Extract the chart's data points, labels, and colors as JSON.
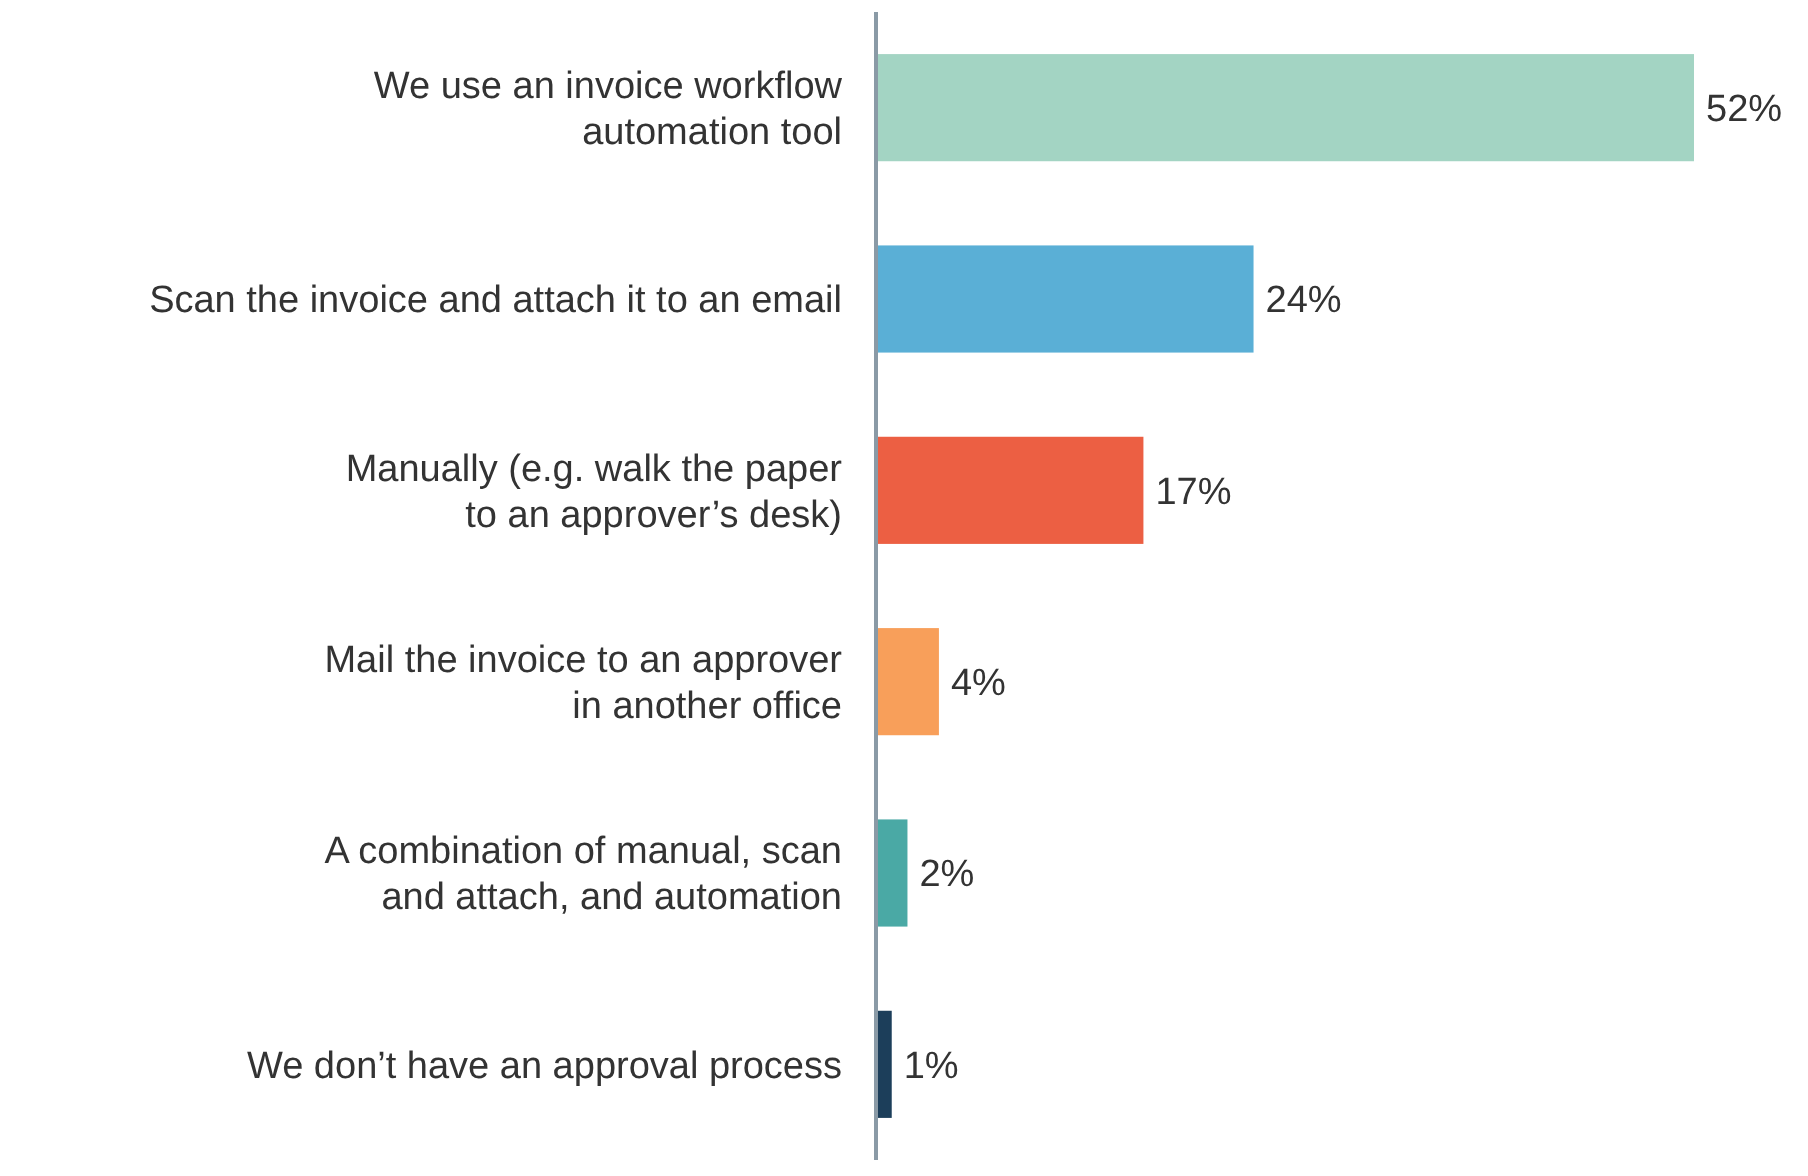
{
  "chart_data": {
    "type": "bar",
    "orientation": "horizontal",
    "value_labels": [
      "52%",
      "24%",
      "17%",
      "4%",
      "2%",
      "1%"
    ],
    "categories": [
      "We use an invoice workflow\nautomation tool",
      "Scan the invoice and attach it to an email",
      "Manually (e.g. walk the paper\nto an approver’s desk)",
      "Mail the invoice to an approver\nin another office",
      "A combination of manual, scan\nand attach, and automation",
      "We don’t have an approval process"
    ],
    "values": [
      52,
      24,
      17,
      4,
      2,
      1
    ],
    "colors": [
      "#a3d4c3",
      "#5aafd6",
      "#ec5f43",
      "#f89f5a",
      "#4aa9a5",
      "#1c3e5a"
    ]
  }
}
